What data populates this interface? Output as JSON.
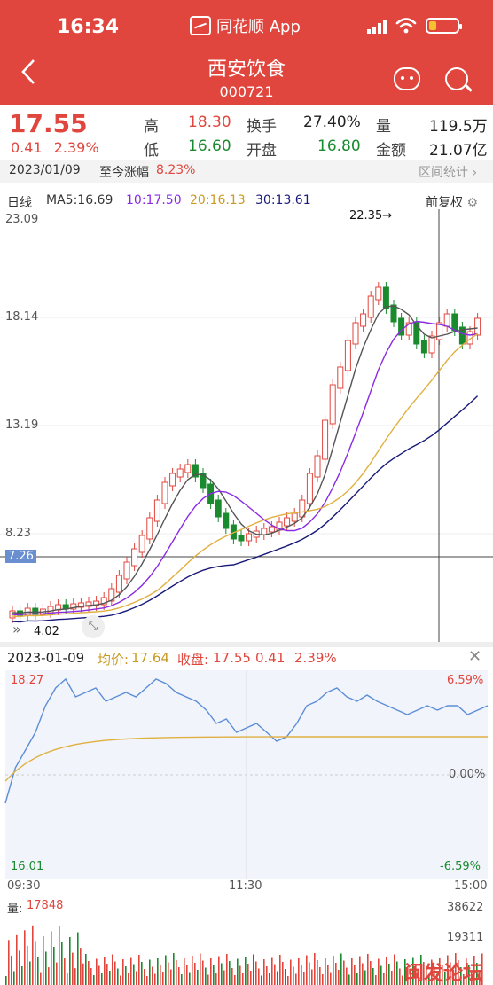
{
  "status_bar": {
    "time": "16:34",
    "app": "同花顺 App"
  },
  "header": {
    "stock_name": "西安饮食",
    "stock_code": "000721"
  },
  "quote": {
    "price": "17.55",
    "change": "0.41",
    "change_pct": "2.39%",
    "high_label": "高",
    "high": "18.30",
    "low_label": "低",
    "low": "16.60",
    "turnover_label": "换手",
    "turnover": "27.40%",
    "open_label": "开盘",
    "open": "16.80",
    "volume_label": "量",
    "volume": "119.5万",
    "amount_label": "金额",
    "amount": "21.07亿"
  },
  "info_bar": {
    "date": "2023/01/09",
    "since_label": "至今涨幅",
    "since_value": "8.23%",
    "range_stats": "区间统计"
  },
  "kline": {
    "period": "日线",
    "ma5": "MA5:16.69",
    "ma10": "10:17.50",
    "ma20": "20:16.13",
    "ma30": "30:13.61",
    "adjust": "前复权",
    "y_labels": [
      "23.09",
      "18.14",
      "13.19",
      "8.23"
    ],
    "current_price_tag": "7.26",
    "max_label": "22.35→",
    "min_label": "4.02",
    "colors": {
      "up": "#e0463d",
      "down": "#1a8a2e",
      "ma5": "#555555",
      "ma10": "#8a2be2",
      "ma20": "#e0b040",
      "ma30": "#1a1a7a"
    }
  },
  "intraday": {
    "date": "2023-01-09",
    "avg_label": "均价:",
    "avg": "17.64",
    "close_label": "收盘:",
    "close": "17.55",
    "change": "0.41",
    "change_pct": "2.39%",
    "high_price": "18.27",
    "low_price": "16.01",
    "high_pct": "6.59%",
    "mid_pct": "0.00%",
    "low_pct": "-6.59%",
    "times": [
      "09:30",
      "11:30",
      "15:00"
    ]
  },
  "volume": {
    "label": "量:",
    "value": "17848",
    "max": "38622",
    "mid": "19311"
  },
  "watermark": "闽发论坛"
}
